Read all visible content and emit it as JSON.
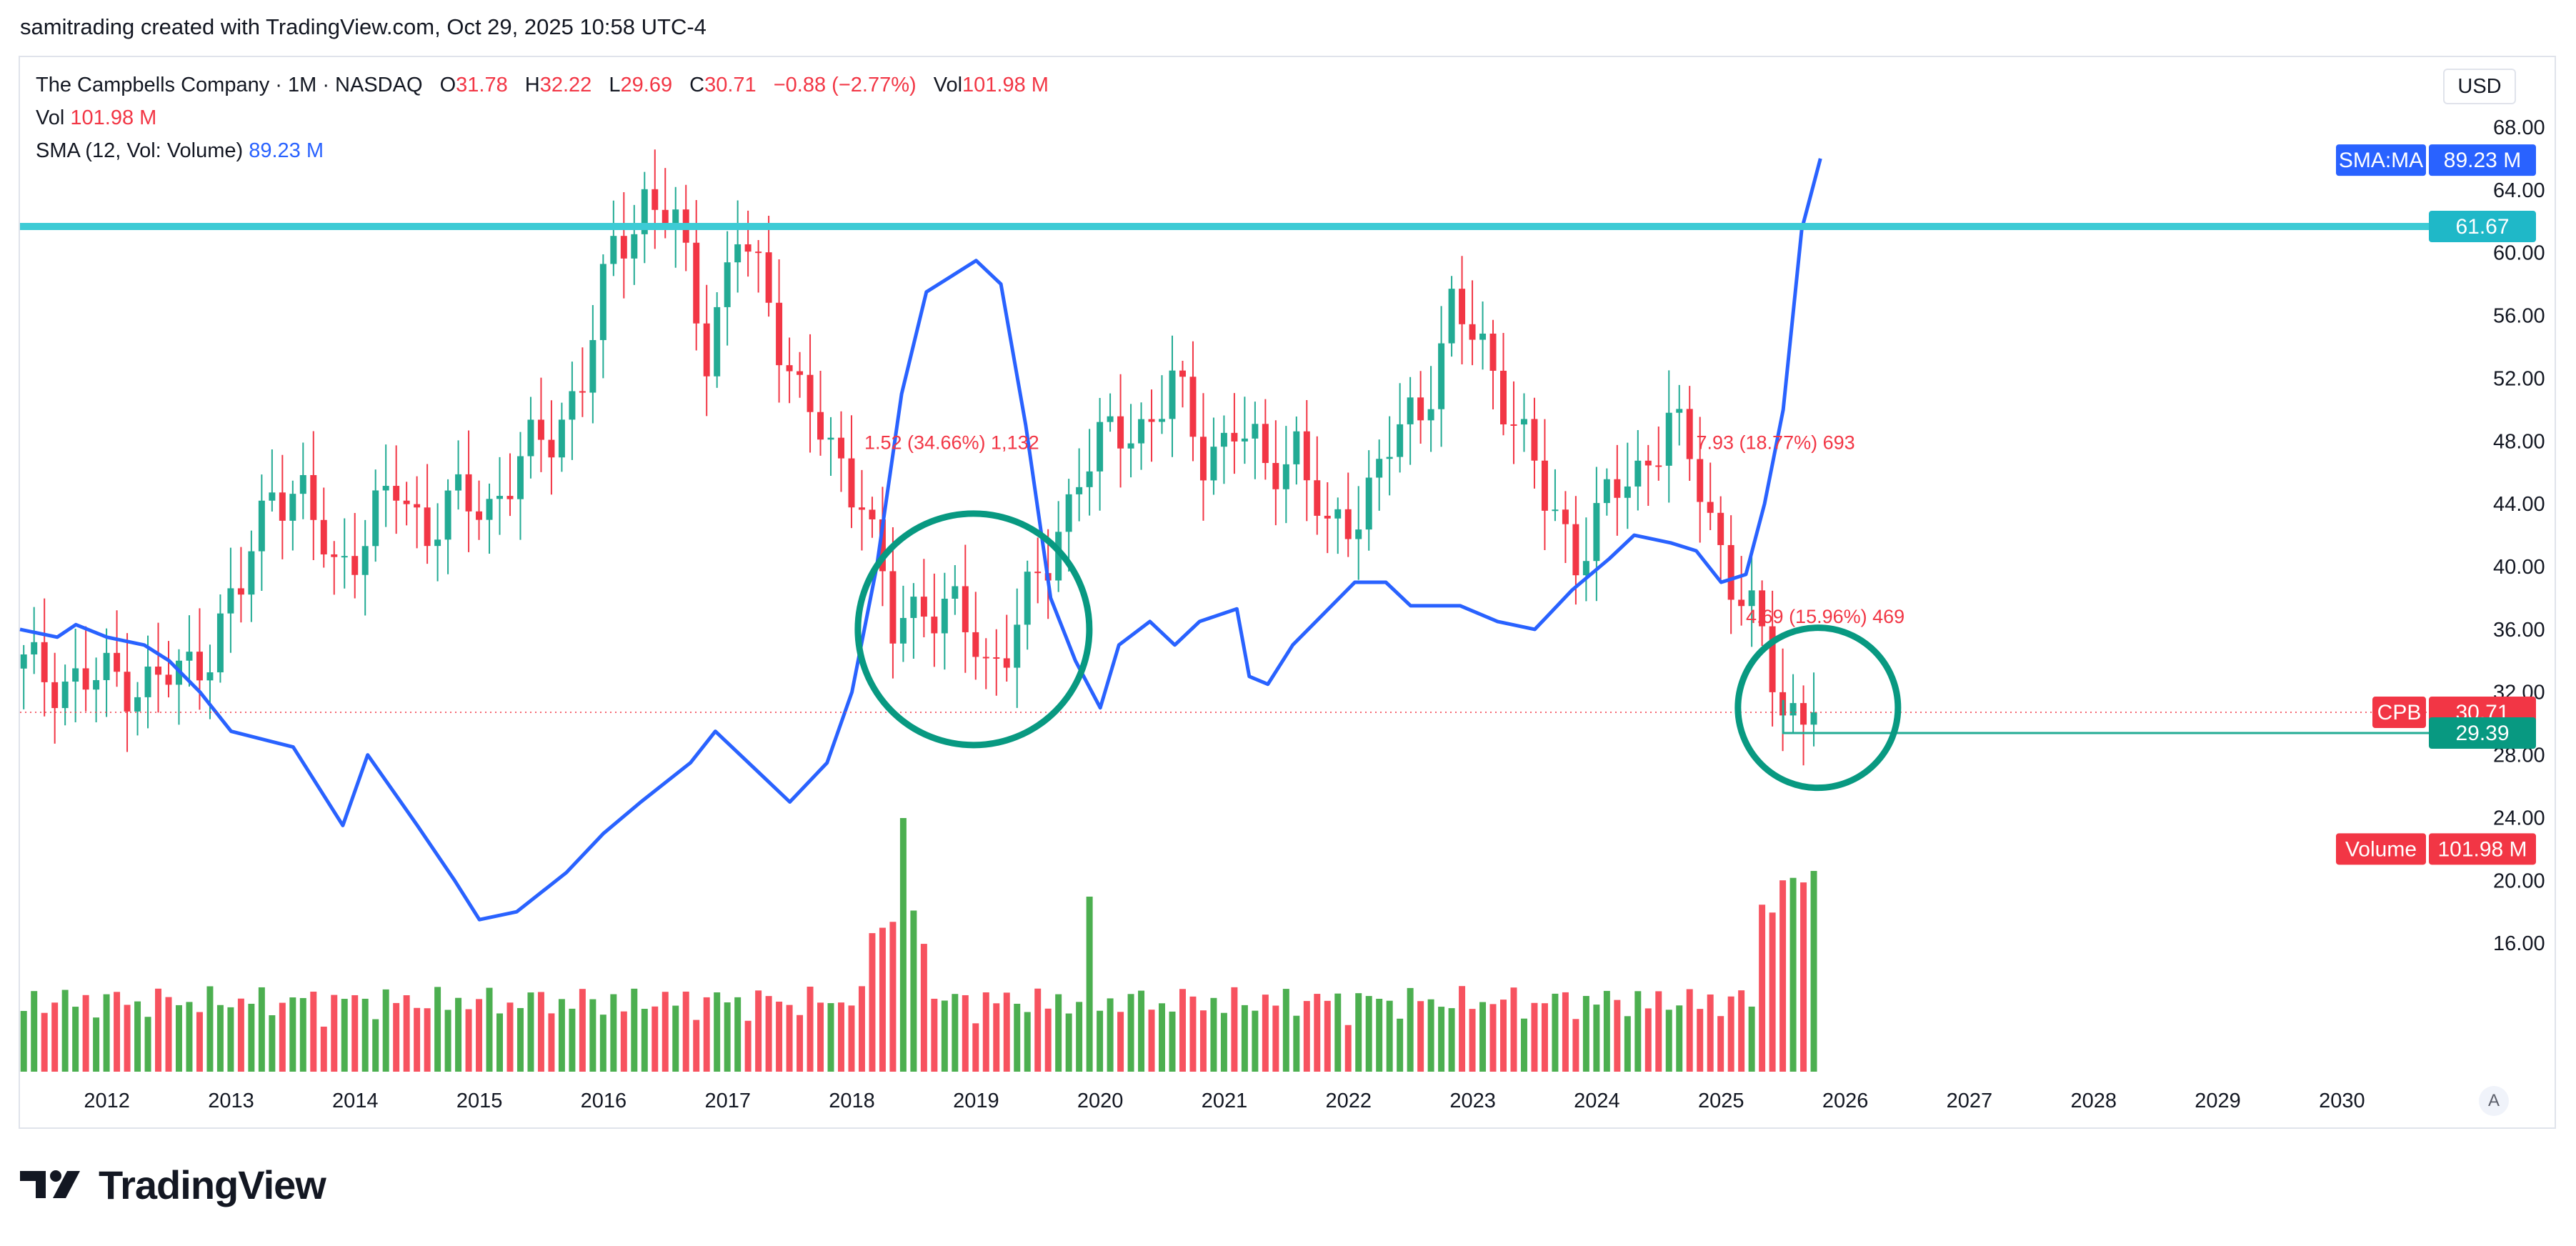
{
  "header": {
    "created_line": "samitrading created with TradingView.com, Oct 29, 2025 10:58 UTC-4",
    "currency": "USD",
    "brand": "TradingView"
  },
  "legend": {
    "symbol": "The Campbells Company · 1M · NASDAQ",
    "o_label": "O",
    "o_value": "31.78",
    "h_label": "H",
    "h_value": "32.22",
    "l_label": "L",
    "l_value": "29.69",
    "c_label": "C",
    "c_value": "30.71",
    "change": "−0.88 (−2.77%)",
    "vol_label": "Vol",
    "vol_value": "101.98 M",
    "vol_row_label": "Vol",
    "vol_row_value": "101.98 M",
    "sma_label": "SMA (12, Vol: Volume)",
    "sma_value": "89.23 M"
  },
  "colors": {
    "up": "#22ab94",
    "down": "#f23645",
    "vol_up": "#4caf50",
    "vol_down": "#f7525f",
    "sma": "#2962ff",
    "resistance": "#3dcbd5",
    "circle": "#089981",
    "support": "#22ab94"
  },
  "chart_data": {
    "type": "candlestick",
    "symbol": "CPB",
    "interval": "1M",
    "price_axis": {
      "min": 12.0,
      "max": 68.0,
      "ticks": [
        "68.00",
        "64.00",
        "60.00",
        "56.00",
        "52.00",
        "48.00",
        "44.00",
        "40.00",
        "36.00",
        "32.00",
        "28.00",
        "24.00",
        "20.00",
        "16.00"
      ]
    },
    "time_axis": {
      "start": 2011.3,
      "end": 2030.7,
      "labels": [
        "2012",
        "2013",
        "2014",
        "2015",
        "2016",
        "2017",
        "2018",
        "2019",
        "2020",
        "2021",
        "2022",
        "2023",
        "2024",
        "2025",
        "2026",
        "2027",
        "2028",
        "2029",
        "2030"
      ]
    },
    "close_series": [
      {
        "t": 2011.33,
        "c": 33.5
      },
      {
        "t": 2011.58,
        "c": 33.0
      },
      {
        "t": 2011.83,
        "c": 32.5
      },
      {
        "t": 2012.08,
        "c": 33.0
      },
      {
        "t": 2012.33,
        "c": 32.5
      },
      {
        "t": 2012.58,
        "c": 33.0
      },
      {
        "t": 2012.83,
        "c": 35.0
      },
      {
        "t": 2013.08,
        "c": 38.5
      },
      {
        "t": 2013.33,
        "c": 45.5
      },
      {
        "t": 2013.58,
        "c": 44.0
      },
      {
        "t": 2013.83,
        "c": 40.0
      },
      {
        "t": 2014.08,
        "c": 42.0
      },
      {
        "t": 2014.33,
        "c": 45.0
      },
      {
        "t": 2014.58,
        "c": 42.5
      },
      {
        "t": 2014.83,
        "c": 44.0
      },
      {
        "t": 2015.08,
        "c": 44.0
      },
      {
        "t": 2015.33,
        "c": 46.5
      },
      {
        "t": 2015.58,
        "c": 48.5
      },
      {
        "t": 2015.83,
        "c": 52.0
      },
      {
        "t": 2016.08,
        "c": 60.0
      },
      {
        "t": 2016.33,
        "c": 63.5
      },
      {
        "t": 2016.58,
        "c": 61.5
      },
      {
        "t": 2016.83,
        "c": 54.0
      },
      {
        "t": 2017.08,
        "c": 61.0
      },
      {
        "t": 2017.33,
        "c": 57.0
      },
      {
        "t": 2017.58,
        "c": 51.0
      },
      {
        "t": 2017.83,
        "c": 47.0
      },
      {
        "t": 2018.08,
        "c": 45.0
      },
      {
        "t": 2018.33,
        "c": 35.5
      },
      {
        "t": 2018.58,
        "c": 38.0
      },
      {
        "t": 2018.83,
        "c": 37.0
      },
      {
        "t": 2019.08,
        "c": 33.5
      },
      {
        "t": 2019.33,
        "c": 36.5
      },
      {
        "t": 2019.58,
        "c": 40.0
      },
      {
        "t": 2019.83,
        "c": 46.5
      },
      {
        "t": 2020.08,
        "c": 48.0
      },
      {
        "t": 2020.33,
        "c": 49.0
      },
      {
        "t": 2020.58,
        "c": 51.5
      },
      {
        "t": 2020.83,
        "c": 47.0
      },
      {
        "t": 2021.08,
        "c": 49.0
      },
      {
        "t": 2021.33,
        "c": 46.0
      },
      {
        "t": 2021.58,
        "c": 48.0
      },
      {
        "t": 2021.83,
        "c": 41.5
      },
      {
        "t": 2022.08,
        "c": 44.0
      },
      {
        "t": 2022.33,
        "c": 47.5
      },
      {
        "t": 2022.58,
        "c": 50.0
      },
      {
        "t": 2022.83,
        "c": 56.5
      },
      {
        "t": 2023.08,
        "c": 53.5
      },
      {
        "t": 2023.33,
        "c": 50.0
      },
      {
        "t": 2023.58,
        "c": 44.0
      },
      {
        "t": 2023.83,
        "c": 41.0
      },
      {
        "t": 2024.08,
        "c": 44.0
      },
      {
        "t": 2024.33,
        "c": 46.0
      },
      {
        "t": 2024.58,
        "c": 49.5
      },
      {
        "t": 2024.83,
        "c": 45.0
      },
      {
        "t": 2025.08,
        "c": 39.5
      },
      {
        "t": 2025.33,
        "c": 35.0
      },
      {
        "t": 2025.5,
        "c": 31.0
      },
      {
        "t": 2025.75,
        "c": 30.71
      }
    ],
    "sma_volume": {
      "name": "SMA (12, Vol: Volume)",
      "last": "89.23 M",
      "points": [
        {
          "t": 2011.3,
          "v": 36.0
        },
        {
          "t": 2011.6,
          "v": 35.5
        },
        {
          "t": 2011.75,
          "v": 36.3
        },
        {
          "t": 2012.0,
          "v": 35.5
        },
        {
          "t": 2012.3,
          "v": 35.0
        },
        {
          "t": 2012.5,
          "v": 34.0
        },
        {
          "t": 2012.75,
          "v": 32.0
        },
        {
          "t": 2013.0,
          "v": 29.5
        },
        {
          "t": 2013.5,
          "v": 28.5
        },
        {
          "t": 2013.9,
          "v": 23.5
        },
        {
          "t": 2014.1,
          "v": 28.0
        },
        {
          "t": 2014.5,
          "v": 23.5
        },
        {
          "t": 2014.8,
          "v": 20.0
        },
        {
          "t": 2015.0,
          "v": 17.5
        },
        {
          "t": 2015.3,
          "v": 18.0
        },
        {
          "t": 2015.7,
          "v": 20.5
        },
        {
          "t": 2016.0,
          "v": 23.0
        },
        {
          "t": 2016.3,
          "v": 25.0
        },
        {
          "t": 2016.7,
          "v": 27.5
        },
        {
          "t": 2016.9,
          "v": 29.5
        },
        {
          "t": 2017.3,
          "v": 26.5
        },
        {
          "t": 2017.5,
          "v": 25.0
        },
        {
          "t": 2017.8,
          "v": 27.5
        },
        {
          "t": 2018.0,
          "v": 32.0
        },
        {
          "t": 2018.2,
          "v": 40.0
        },
        {
          "t": 2018.4,
          "v": 51.0
        },
        {
          "t": 2018.6,
          "v": 57.5
        },
        {
          "t": 2018.8,
          "v": 58.5
        },
        {
          "t": 2019.0,
          "v": 59.5
        },
        {
          "t": 2019.2,
          "v": 58.0
        },
        {
          "t": 2019.4,
          "v": 49.0
        },
        {
          "t": 2019.6,
          "v": 38.0
        },
        {
          "t": 2019.8,
          "v": 34.0
        },
        {
          "t": 2020.0,
          "v": 31.0
        },
        {
          "t": 2020.15,
          "v": 35.0
        },
        {
          "t": 2020.4,
          "v": 36.5
        },
        {
          "t": 2020.6,
          "v": 35.0
        },
        {
          "t": 2020.8,
          "v": 36.5
        },
        {
          "t": 2021.1,
          "v": 37.3
        },
        {
          "t": 2021.2,
          "v": 33.0
        },
        {
          "t": 2021.35,
          "v": 32.5
        },
        {
          "t": 2021.55,
          "v": 35.0
        },
        {
          "t": 2021.8,
          "v": 37.0
        },
        {
          "t": 2022.05,
          "v": 39.0
        },
        {
          "t": 2022.3,
          "v": 39.0
        },
        {
          "t": 2022.5,
          "v": 37.5
        },
        {
          "t": 2022.9,
          "v": 37.5
        },
        {
          "t": 2023.2,
          "v": 36.5
        },
        {
          "t": 2023.5,
          "v": 36.0
        },
        {
          "t": 2023.8,
          "v": 38.5
        },
        {
          "t": 2024.1,
          "v": 40.5
        },
        {
          "t": 2024.3,
          "v": 42.0
        },
        {
          "t": 2024.6,
          "v": 41.5
        },
        {
          "t": 2024.8,
          "v": 41.0
        },
        {
          "t": 2025.0,
          "v": 39.0
        },
        {
          "t": 2025.2,
          "v": 39.5
        },
        {
          "t": 2025.35,
          "v": 44.0
        },
        {
          "t": 2025.5,
          "v": 50.0
        },
        {
          "t": 2025.65,
          "v": 61.5
        },
        {
          "t": 2025.8,
          "v": 66.0
        }
      ]
    },
    "volume": {
      "name": "Volume",
      "last": "101.98 M",
      "up_ratio": 0.5
    },
    "horizontal_lines": [
      {
        "price": 61.67,
        "label": "61.67",
        "style": "solid"
      }
    ],
    "support_line": {
      "price": 29.39,
      "label": "29.39",
      "from": 2025.5
    },
    "current_price": {
      "symbol": "CPB",
      "price": 30.71,
      "label": "30.71"
    },
    "sma_tag": {
      "label": "SMA:MA",
      "value": "89.23 M"
    },
    "volume_tag": {
      "label": "Volume",
      "value": "101.98 M"
    },
    "annotations": [
      {
        "text": "1.52 (34.66%) 1,132",
        "t": 2018.1,
        "price": 47.5
      },
      {
        "text": "7.93 (18.77%) 693",
        "t": 2024.8,
        "price": 47.5
      },
      {
        "text": "4.69 (15.96%) 469",
        "t": 2025.2,
        "price": 36.4
      }
    ],
    "circles": [
      {
        "t": 2018.98,
        "price": 36.0
      },
      {
        "t": 2025.78,
        "price": 31.0
      }
    ]
  }
}
